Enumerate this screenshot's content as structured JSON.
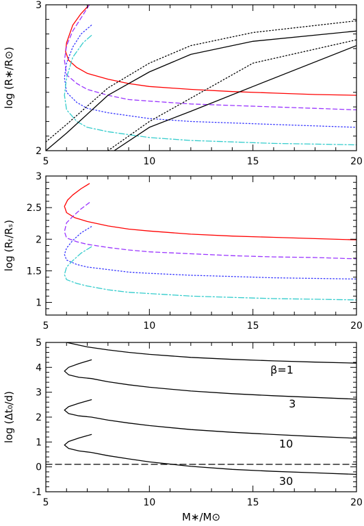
{
  "chart_data": [
    {
      "type": "line",
      "xlim": [
        5,
        20
      ],
      "ylim": [
        2,
        3
      ],
      "xticks": [
        "5",
        "10",
        "15",
        "20"
      ],
      "yticks": [
        "2",
        "3"
      ],
      "ylabel": "log (R∗/R⊙)",
      "xlabel": "",
      "grid": false,
      "series": [
        {
          "color": "#ff0000",
          "dash": "solid",
          "x": [
            7.1,
            6.7,
            6.3,
            6.0,
            5.95,
            6.1,
            6.5,
            7.0,
            8.0,
            9.0,
            10.0,
            12.0,
            14.0,
            16.0,
            18.0,
            20.0
          ],
          "y": [
            3.0,
            2.94,
            2.86,
            2.74,
            2.68,
            2.62,
            2.57,
            2.53,
            2.49,
            2.46,
            2.44,
            2.42,
            2.405,
            2.395,
            2.385,
            2.38
          ]
        },
        {
          "color": "#9933ff",
          "dash": "6,4",
          "x": [
            7.1,
            6.7,
            6.3,
            6.0,
            5.9,
            6.0,
            6.5,
            7.0,
            8.0,
            9.0,
            10.0,
            12.0,
            14.0,
            16.0,
            18.0,
            20.0
          ],
          "y": [
            3.0,
            2.91,
            2.82,
            2.72,
            2.62,
            2.52,
            2.46,
            2.42,
            2.38,
            2.35,
            2.34,
            2.32,
            2.31,
            2.3,
            2.29,
            2.28
          ]
        },
        {
          "color": "#3333ff",
          "dash": "1.5,3",
          "x": [
            7.2,
            6.7,
            6.3,
            6.0,
            5.9,
            6.0,
            6.5,
            7.0,
            8.0,
            9.0,
            10.0,
            12.0,
            14.0,
            16.0,
            18.0,
            20.0
          ],
          "y": [
            2.86,
            2.8,
            2.71,
            2.6,
            2.5,
            2.4,
            2.33,
            2.29,
            2.26,
            2.24,
            2.22,
            2.2,
            2.19,
            2.18,
            2.17,
            2.16
          ]
        },
        {
          "color": "#33cccc",
          "dash": "8,3,2,3",
          "x": [
            7.2,
            6.8,
            6.3,
            6.0,
            5.9,
            6.0,
            6.5,
            7.0,
            8.0,
            9.0,
            10.0,
            12.0,
            14.0,
            16.0,
            18.0,
            20.0
          ],
          "y": [
            2.79,
            2.74,
            2.64,
            2.5,
            2.38,
            2.28,
            2.2,
            2.16,
            2.13,
            2.11,
            2.09,
            2.07,
            2.06,
            2.05,
            2.045,
            2.04
          ]
        },
        {
          "color": "#000000",
          "dash": "solid",
          "x": [
            5.0,
            6.0,
            8.0,
            10.0,
            12.0,
            15.0,
            20.0
          ],
          "y": [
            2.0,
            2.12,
            2.38,
            2.54,
            2.66,
            2.75,
            2.82
          ]
        },
        {
          "color": "#000000",
          "dash": "1.5,3",
          "x": [
            5.0,
            6.0,
            8.0,
            10.0,
            12.0,
            15.0,
            20.0
          ],
          "y": [
            2.06,
            2.18,
            2.43,
            2.6,
            2.72,
            2.81,
            2.89
          ]
        },
        {
          "color": "#000000",
          "dash": "solid",
          "x": [
            8.3,
            10.0,
            12.0,
            15.0,
            20.0
          ],
          "y": [
            2.0,
            2.16,
            2.27,
            2.44,
            2.72
          ]
        },
        {
          "color": "#000000",
          "dash": "1.5,3",
          "x": [
            8.0,
            10.0,
            12.0,
            15.0,
            20.0
          ],
          "y": [
            2.0,
            2.2,
            2.36,
            2.6,
            2.76
          ]
        }
      ],
      "annotations": []
    },
    {
      "type": "line",
      "xlim": [
        5,
        20
      ],
      "ylim": [
        0.8,
        3
      ],
      "xticks": [
        "5",
        "10",
        "15",
        "20"
      ],
      "yticks": [
        "1",
        "1.5",
        "2",
        "2.5",
        "3"
      ],
      "ylabel": "log (Rₜ/Rₛ)",
      "xlabel": "",
      "grid": false,
      "series": [
        {
          "color": "#ff0000",
          "dash": "solid",
          "x": [
            7.1,
            6.7,
            6.3,
            6.05,
            5.9,
            6.0,
            6.4,
            7.0,
            8.0,
            9.0,
            10.0,
            12.0,
            14.0,
            16.0,
            18.0,
            20.0
          ],
          "y": [
            2.88,
            2.8,
            2.7,
            2.62,
            2.52,
            2.42,
            2.34,
            2.28,
            2.21,
            2.16,
            2.13,
            2.08,
            2.05,
            2.03,
            2.01,
            1.99
          ]
        },
        {
          "color": "#9933ff",
          "dash": "6,4",
          "x": [
            7.1,
            6.7,
            6.3,
            6.0,
            5.9,
            6.0,
            6.5,
            7.0,
            8.0,
            9.0,
            10.0,
            12.0,
            14.0,
            16.0,
            18.0,
            20.0
          ],
          "y": [
            2.58,
            2.48,
            2.36,
            2.26,
            2.12,
            2.02,
            1.96,
            1.92,
            1.87,
            1.83,
            1.8,
            1.77,
            1.74,
            1.72,
            1.71,
            1.69
          ]
        },
        {
          "color": "#3333ff",
          "dash": "1.5,3",
          "x": [
            7.2,
            6.7,
            6.3,
            6.0,
            5.9,
            6.0,
            6.5,
            7.0,
            8.0,
            9.0,
            10.0,
            12.0,
            14.0,
            16.0,
            18.0,
            20.0
          ],
          "y": [
            2.2,
            2.1,
            1.98,
            1.86,
            1.76,
            1.67,
            1.6,
            1.56,
            1.52,
            1.48,
            1.46,
            1.43,
            1.41,
            1.39,
            1.38,
            1.37
          ]
        },
        {
          "color": "#33cccc",
          "dash": "8,3,2,3",
          "x": [
            7.2,
            6.7,
            6.3,
            6.0,
            5.9,
            6.0,
            6.5,
            7.0,
            8.0,
            9.0,
            10.0,
            12.0,
            14.0,
            16.0,
            18.0,
            20.0
          ],
          "y": [
            1.88,
            1.78,
            1.66,
            1.56,
            1.44,
            1.36,
            1.3,
            1.26,
            1.2,
            1.16,
            1.14,
            1.1,
            1.08,
            1.06,
            1.05,
            1.04
          ]
        }
      ],
      "annotations": []
    },
    {
      "type": "line",
      "xlim": [
        5,
        20
      ],
      "ylim": [
        -1,
        5
      ],
      "xticks": [
        "5",
        "10",
        "15",
        "20"
      ],
      "yticks": [
        "-1",
        "0",
        "1",
        "2",
        "3",
        "4",
        "5"
      ],
      "ylabel": "log (Δt₀/d)",
      "xlabel": "M∗/M⊙",
      "grid": false,
      "series": [
        {
          "color": "#000000",
          "dash": "solid",
          "x": [
            6.0,
            7.0,
            8.0,
            9.0,
            10.0,
            12.0,
            14.0,
            16.0,
            18.0,
            20.0
          ],
          "y": [
            5.0,
            4.82,
            4.7,
            4.6,
            4.52,
            4.4,
            4.32,
            4.26,
            4.21,
            4.17
          ]
        },
        {
          "color": "#000000",
          "dash": "solid",
          "x": [
            7.2,
            6.6,
            6.1,
            5.9,
            6.1,
            6.6,
            7.2,
            8.0,
            9.0,
            10.0,
            12.0,
            14.0,
            16.0,
            18.0,
            20.0
          ],
          "y": [
            4.3,
            4.15,
            4.0,
            3.85,
            3.7,
            3.6,
            3.55,
            3.42,
            3.3,
            3.2,
            3.05,
            2.94,
            2.86,
            2.79,
            2.72
          ]
        },
        {
          "color": "#000000",
          "dash": "solid",
          "x": [
            7.2,
            6.6,
            6.1,
            5.9,
            6.1,
            6.6,
            7.2,
            8.0,
            9.0,
            10.0,
            12.0,
            14.0,
            16.0,
            18.0,
            20.0
          ],
          "y": [
            2.7,
            2.56,
            2.42,
            2.28,
            2.14,
            2.05,
            2.0,
            1.88,
            1.76,
            1.66,
            1.5,
            1.39,
            1.3,
            1.22,
            1.15
          ]
        },
        {
          "color": "#000000",
          "dash": "solid",
          "x": [
            7.2,
            6.6,
            6.1,
            5.9,
            6.1,
            6.6,
            7.2,
            8.0,
            9.0,
            10.0,
            12.0,
            14.0,
            16.0,
            18.0,
            20.0
          ],
          "y": [
            1.3,
            1.16,
            1.02,
            0.88,
            0.74,
            0.64,
            0.58,
            0.45,
            0.32,
            0.2,
            0.02,
            -0.1,
            -0.18,
            -0.24,
            -0.3
          ]
        },
        {
          "color": "#000000",
          "dash": "9,5",
          "x": [
            5.0,
            20.0
          ],
          "y": [
            0.1,
            0.1
          ]
        }
      ],
      "annotations": [
        {
          "text": "β=1",
          "x": 16.4,
          "y": 3.75
        },
        {
          "text": "3",
          "x": 16.9,
          "y": 2.38
        },
        {
          "text": "10",
          "x": 16.6,
          "y": 0.78
        },
        {
          "text": "30",
          "x": 16.6,
          "y": -0.72
        }
      ]
    }
  ]
}
